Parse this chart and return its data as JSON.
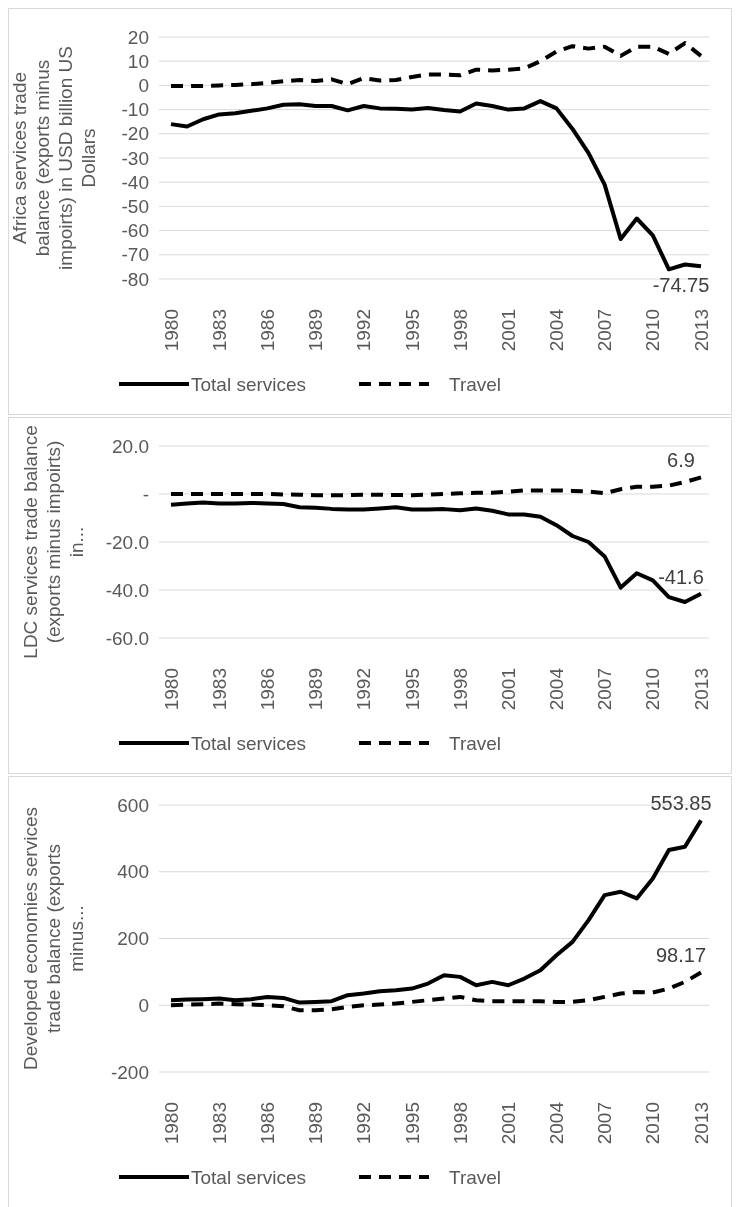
{
  "chart_data": [
    {
      "type": "line",
      "ylabel": "Africa services trade balance (exports minus impoirts) in USD billion US Dollars",
      "categories": [
        "1980",
        null,
        null,
        "1983",
        null,
        null,
        "1986",
        null,
        null,
        "1989",
        null,
        null,
        "1992",
        null,
        null,
        "1995",
        null,
        null,
        "1998",
        null,
        null,
        "2001",
        null,
        null,
        "2004",
        null,
        null,
        "2007",
        null,
        null,
        "2010",
        null,
        null,
        "2013"
      ],
      "series": [
        {
          "name": "Total services",
          "color": "#000000",
          "line_style": "solid",
          "values": [
            -16,
            -17,
            -14,
            -12,
            -11.5,
            -10.5,
            -9.5,
            -8,
            -7.8,
            -8.5,
            -8.5,
            -10.3,
            -8.5,
            -9.5,
            -9.6,
            -10,
            -9.3,
            -10.2,
            -10.8,
            -7.5,
            -8.5,
            -10,
            -9.5,
            -6.5,
            -9.5,
            -18,
            -28,
            -41,
            -63.5,
            -55,
            -62,
            -76,
            -74,
            -74.75
          ]
        },
        {
          "name": "Travel",
          "color": "#000000",
          "line_style": "dashed",
          "values": [
            -0.2,
            -0.3,
            -0.2,
            0,
            0.2,
            0.5,
            1,
            1.7,
            2.2,
            1.8,
            2.5,
            0.5,
            3,
            2,
            2.2,
            3.5,
            4.5,
            4.5,
            4.2,
            6.5,
            6.2,
            6.5,
            7,
            10,
            14,
            16.2,
            15.2,
            16,
            12.2,
            16,
            16,
            13,
            17.5,
            12.2
          ]
        }
      ],
      "ylim": [
        -80,
        20
      ],
      "yticks": [
        20,
        10,
        0,
        -10,
        -20,
        -30,
        -40,
        -50,
        -60,
        -70,
        -80
      ],
      "grid": "y",
      "legend": "bottom",
      "marker": "none",
      "annotations": [
        {
          "text": "-74.75",
          "x": "2013",
          "y": -74.75
        }
      ]
    },
    {
      "type": "line",
      "ylabel": "LDC services trade balance (exports minus impoirts) in...",
      "categories": [
        "1980",
        null,
        null,
        "1983",
        null,
        null,
        "1986",
        null,
        null,
        "1989",
        null,
        null,
        "1992",
        null,
        null,
        "1995",
        null,
        null,
        "1998",
        null,
        null,
        "2001",
        null,
        null,
        "2004",
        null,
        null,
        "2007",
        null,
        null,
        "2010",
        null,
        null,
        "2013"
      ],
      "series": [
        {
          "name": "Total services",
          "color": "#000000",
          "line_style": "solid",
          "values": [
            -4.5,
            -4,
            -3.5,
            -4,
            -4,
            -3.7,
            -4,
            -4.2,
            -5.5,
            -5.7,
            -6.2,
            -6.5,
            -6.5,
            -6,
            -5.5,
            -6.5,
            -6.5,
            -6.3,
            -6.8,
            -6,
            -7,
            -8.5,
            -8.5,
            -9.5,
            -13,
            -17.5,
            -20,
            -26,
            -39,
            -33,
            -36,
            -43,
            -45,
            -41.6
          ]
        },
        {
          "name": "Travel",
          "color": "#000000",
          "line_style": "dashed",
          "values": [
            0,
            0,
            0,
            0,
            0,
            0,
            0,
            -0.2,
            -0.3,
            -0.5,
            -0.5,
            -0.5,
            -0.3,
            -0.3,
            -0.4,
            -0.5,
            -0.3,
            0,
            0.3,
            0.5,
            0.5,
            1,
            1.5,
            1.5,
            1.5,
            1.3,
            1,
            0.3,
            2,
            3,
            3,
            3.5,
            5,
            6.9
          ]
        }
      ],
      "ylim": [
        -60,
        20
      ],
      "yticks": [
        {
          "value": 20,
          "label": "20.0"
        },
        {
          "value": 0,
          "label": "-"
        },
        {
          "value": -20,
          "label": "-20.0"
        },
        {
          "value": -40,
          "label": "-40.0"
        },
        {
          "value": -60,
          "label": "-60.0"
        }
      ],
      "grid": "y",
      "legend": "bottom",
      "marker": "none",
      "annotations": [
        {
          "text": "6.9",
          "x": "2013",
          "y": 6.9
        },
        {
          "text": "-41.6",
          "x": "2013",
          "y": -41.6
        }
      ]
    },
    {
      "type": "line",
      "ylabel": "Developed economies services trade balance (exports minus...",
      "categories": [
        "1980",
        null,
        null,
        "1983",
        null,
        null,
        "1986",
        null,
        null,
        "1989",
        null,
        null,
        "1992",
        null,
        null,
        "1995",
        null,
        null,
        "1998",
        null,
        null,
        "2001",
        null,
        null,
        "2004",
        null,
        null,
        "2007",
        null,
        null,
        "2010",
        null,
        null,
        "2013"
      ],
      "series": [
        {
          "name": "Total services",
          "color": "#000000",
          "line_style": "solid",
          "values": [
            15,
            17,
            18,
            20,
            15,
            18,
            25,
            22,
            8,
            10,
            12,
            30,
            35,
            42,
            45,
            50,
            65,
            90,
            85,
            60,
            70,
            60,
            80,
            105,
            150,
            190,
            255,
            330,
            340,
            320,
            380,
            465,
            475,
            553.85
          ]
        },
        {
          "name": "Travel",
          "color": "#000000",
          "line_style": "dashed",
          "values": [
            0,
            2,
            3,
            5,
            3,
            2,
            0,
            -3,
            -15,
            -15,
            -12,
            -5,
            0,
            2,
            5,
            10,
            15,
            20,
            25,
            15,
            12,
            12,
            12,
            12,
            10,
            10,
            15,
            25,
            35,
            40,
            38,
            50,
            70,
            98.17
          ]
        }
      ],
      "ylim": [
        -200,
        600
      ],
      "yticks": [
        600,
        400,
        200,
        0,
        -200
      ],
      "grid": "y",
      "legend": "bottom",
      "marker": "none",
      "annotations": [
        {
          "text": "553.85",
          "x": "2013",
          "y": 553.85
        },
        {
          "text": "98.17",
          "x": "2013",
          "y": 98.17
        }
      ]
    }
  ]
}
